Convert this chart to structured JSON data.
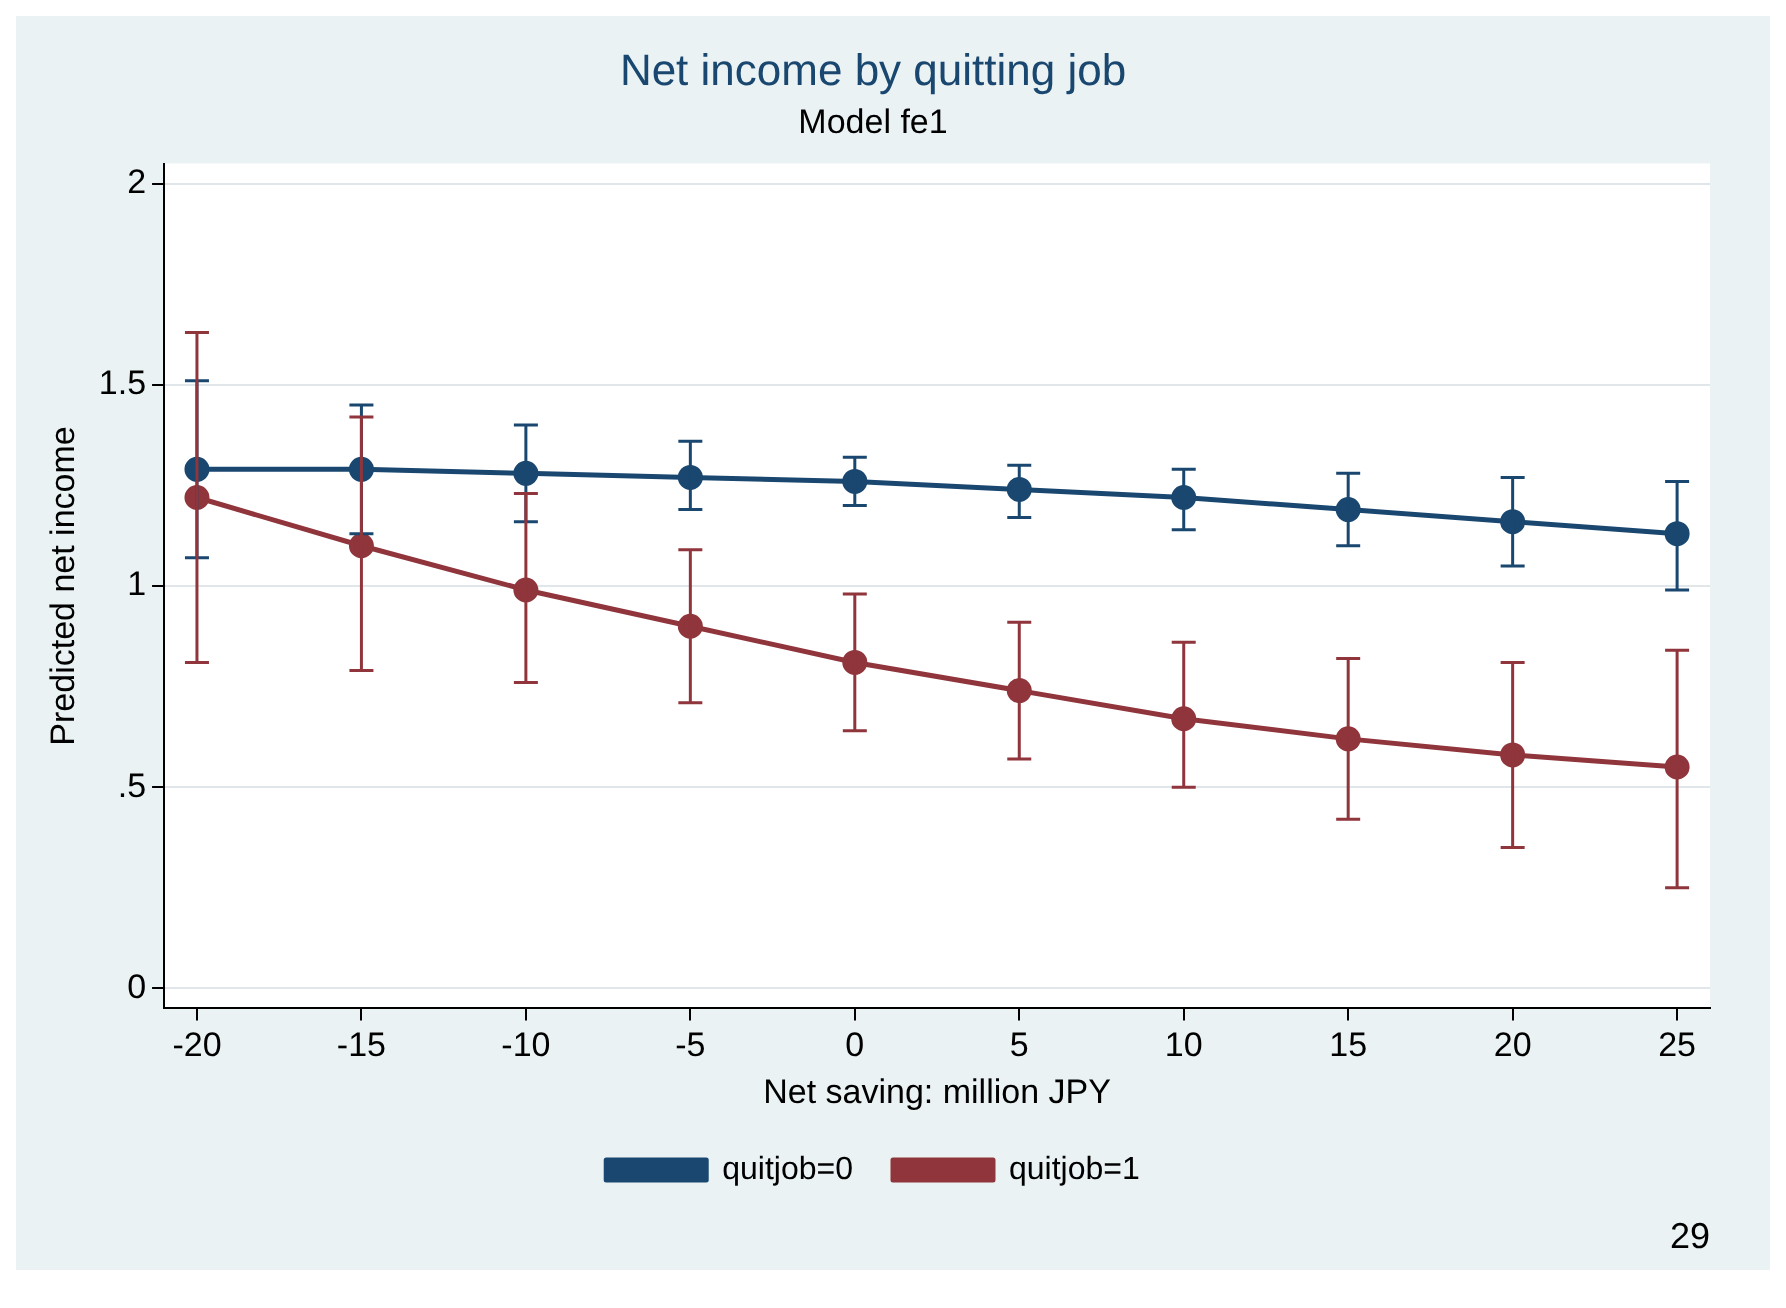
{
  "chart_data": {
    "type": "line",
    "title": "Net income by quitting job",
    "subtitle": "Model fe1",
    "xlabel": "Net saving: million JPY",
    "ylabel": "Predicted net income",
    "x": [
      -20,
      -15,
      -10,
      -5,
      0,
      5,
      10,
      15,
      20,
      25
    ],
    "series": [
      {
        "name": "quitjob=0",
        "color": "#1a476f",
        "values": [
          1.29,
          1.29,
          1.28,
          1.27,
          1.26,
          1.24,
          1.22,
          1.19,
          1.16,
          1.13
        ],
        "errors": [
          [
            1.07,
            1.51
          ],
          [
            1.13,
            1.45
          ],
          [
            1.16,
            1.4
          ],
          [
            1.19,
            1.36
          ],
          [
            1.2,
            1.32
          ],
          [
            1.17,
            1.3
          ],
          [
            1.14,
            1.29
          ],
          [
            1.1,
            1.28
          ],
          [
            1.05,
            1.27
          ],
          [
            0.99,
            1.26
          ]
        ]
      },
      {
        "name": "quitjob=1",
        "color": "#90353b",
        "values": [
          1.22,
          1.1,
          0.99,
          0.9,
          0.81,
          0.74,
          0.67,
          0.62,
          0.58,
          0.55
        ],
        "errors": [
          [
            0.81,
            1.63
          ],
          [
            0.79,
            1.42
          ],
          [
            0.76,
            1.23
          ],
          [
            0.71,
            1.09
          ],
          [
            0.64,
            0.98
          ],
          [
            0.57,
            0.91
          ],
          [
            0.5,
            0.86
          ],
          [
            0.42,
            0.82
          ],
          [
            0.35,
            0.81
          ],
          [
            0.25,
            0.84
          ]
        ]
      }
    ],
    "xlim": [
      -21,
      26
    ],
    "xticks": [
      -20,
      -15,
      -10,
      -5,
      0,
      5,
      10,
      15,
      20,
      25
    ],
    "ylim": [
      -0.05,
      2.05
    ],
    "yticks": [
      0,
      {
        "value": 0.5,
        "label": ".5"
      },
      1,
      1.5,
      2
    ],
    "grid": "y",
    "legend": "bottom",
    "marker": "circle",
    "line_style": "solid",
    "annotations": [
      "29"
    ]
  }
}
